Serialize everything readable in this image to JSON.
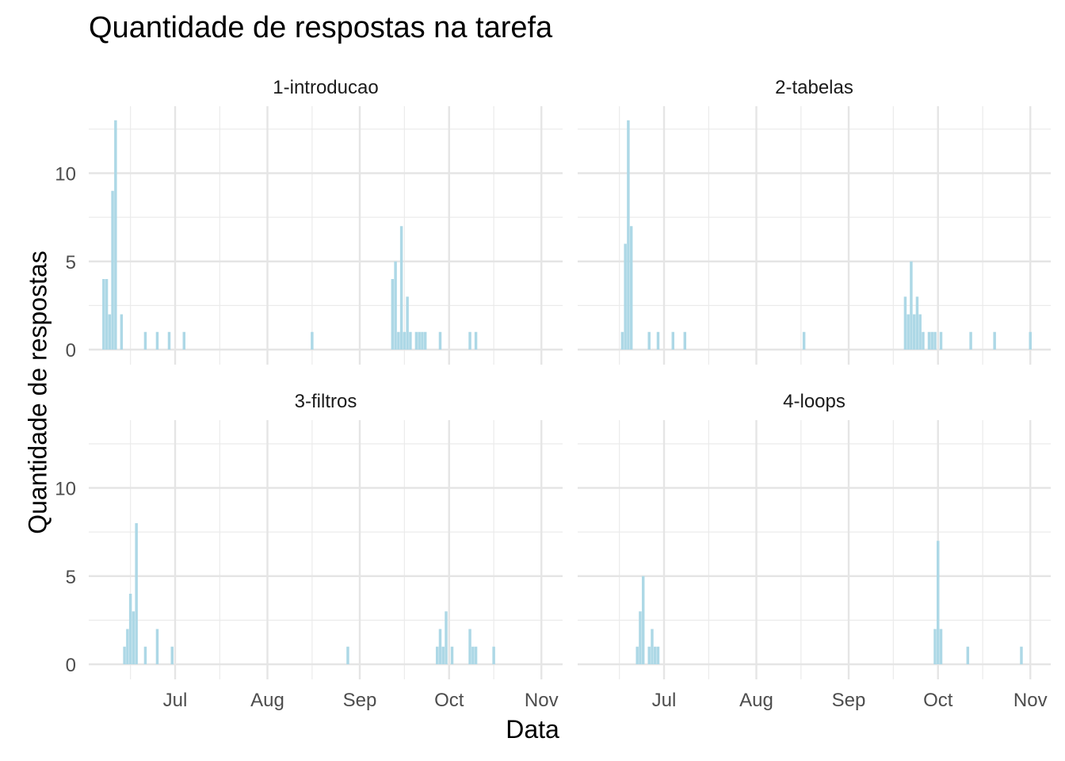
{
  "chart_data": {
    "type": "bar",
    "title": "Quantidade de respostas na tarefa",
    "xlabel": "Data",
    "ylabel": "Quantidade de respostas",
    "x_ticks": [
      "Jul",
      "Aug",
      "Sep",
      "Oct",
      "Nov"
    ],
    "y_ticks": [
      0,
      5,
      10
    ],
    "ylim": [
      0,
      13.5
    ],
    "xlim": [
      "2021-06-03",
      "2021-11-01"
    ],
    "grid": true,
    "bar_color": "#ADD8E6",
    "panels": [
      {
        "name": "1-introducao",
        "x": [
          "2021-06-07",
          "2021-06-08",
          "2021-06-09",
          "2021-06-10",
          "2021-06-11",
          "2021-06-13",
          "2021-06-21",
          "2021-06-25",
          "2021-06-29",
          "2021-07-04",
          "2021-08-16",
          "2021-09-12",
          "2021-09-13",
          "2021-09-14",
          "2021-09-15",
          "2021-09-16",
          "2021-09-17",
          "2021-09-18",
          "2021-09-20",
          "2021-09-21",
          "2021-09-22",
          "2021-09-23",
          "2021-09-28",
          "2021-10-08",
          "2021-10-10"
        ],
        "values": [
          4,
          4,
          2,
          9,
          13,
          2,
          1,
          1,
          1,
          1,
          1,
          4,
          5,
          1,
          7,
          1,
          3,
          1,
          1,
          1,
          1,
          1,
          1,
          1,
          1
        ]
      },
      {
        "name": "2-tabelas",
        "x": [
          "2021-06-17",
          "2021-06-18",
          "2021-06-19",
          "2021-06-20",
          "2021-06-26",
          "2021-06-29",
          "2021-07-04",
          "2021-07-08",
          "2021-08-17",
          "2021-09-20",
          "2021-09-21",
          "2021-09-22",
          "2021-09-23",
          "2021-09-24",
          "2021-09-25",
          "2021-09-26",
          "2021-09-28",
          "2021-09-29",
          "2021-09-30",
          "2021-10-02",
          "2021-10-12",
          "2021-10-20",
          "2021-11-01"
        ],
        "values": [
          1,
          6,
          13,
          7,
          1,
          1,
          1,
          1,
          1,
          3,
          2,
          5,
          2,
          3,
          2,
          1,
          1,
          1,
          1,
          1,
          1,
          1,
          1
        ]
      },
      {
        "name": "3-filtros",
        "x": [
          "2021-06-14",
          "2021-06-15",
          "2021-06-16",
          "2021-06-17",
          "2021-06-18",
          "2021-06-21",
          "2021-06-25",
          "2021-06-30",
          "2021-08-28",
          "2021-09-27",
          "2021-09-28",
          "2021-09-29",
          "2021-09-30",
          "2021-10-02",
          "2021-10-08",
          "2021-10-09",
          "2021-10-10",
          "2021-10-16"
        ],
        "values": [
          1,
          2,
          4,
          3,
          8,
          1,
          2,
          1,
          1,
          1,
          2,
          1,
          3,
          1,
          2,
          1,
          1,
          1
        ]
      },
      {
        "name": "4-loops",
        "x": [
          "2021-06-22",
          "2021-06-23",
          "2021-06-24",
          "2021-06-26",
          "2021-06-27",
          "2021-06-28",
          "2021-06-29",
          "2021-09-30",
          "2021-10-01",
          "2021-10-02",
          "2021-10-11",
          "2021-10-29"
        ],
        "values": [
          1,
          3,
          5,
          1,
          2,
          1,
          1,
          2,
          7,
          2,
          1,
          1
        ]
      }
    ]
  }
}
